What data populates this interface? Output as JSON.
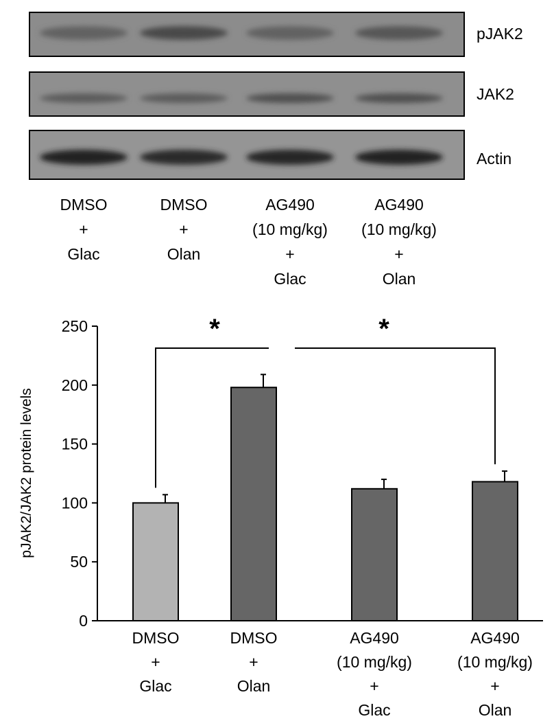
{
  "western_blot": {
    "rows": [
      {
        "label": "pJAK2",
        "intensities": [
          0.35,
          0.55,
          0.35,
          0.45
        ]
      },
      {
        "label": "JAK2",
        "intensities": [
          0.4,
          0.4,
          0.5,
          0.5
        ]
      },
      {
        "label": "Actin",
        "intensities": [
          0.9,
          0.8,
          0.85,
          0.9
        ]
      }
    ],
    "lane_labels": [
      [
        "DMSO",
        "+",
        "Glac"
      ],
      [
        "DMSO",
        "+",
        "Olan"
      ],
      [
        "AG490",
        "(10 mg/kg)",
        "+",
        "Glac"
      ],
      [
        "AG490",
        "(10 mg/kg)",
        "+",
        "Olan"
      ]
    ]
  },
  "chart_data": {
    "type": "bar",
    "categories": [
      [
        "DMSO",
        "+",
        "Glac"
      ],
      [
        "DMSO",
        "+",
        "Olan"
      ],
      [
        "AG490",
        "(10 mg/kg)",
        "+",
        "Glac"
      ],
      [
        "AG490",
        "(10 mg/kg)",
        "+",
        "Olan"
      ]
    ],
    "values": [
      100,
      198,
      112,
      118
    ],
    "errors": [
      7,
      11,
      8,
      9
    ],
    "bar_colors": [
      "#b3b3b3",
      "#666666",
      "#666666",
      "#666666"
    ],
    "ylabel": "pJAK2/JAK2 protein levels",
    "xlabel": "",
    "ylim": [
      0,
      250
    ],
    "yticks": [
      0,
      50,
      100,
      150,
      200,
      250
    ],
    "grid": false,
    "significance": [
      {
        "from": 0,
        "to": 1,
        "label": "*"
      },
      {
        "from": 1,
        "to": 3,
        "label": "*"
      }
    ]
  }
}
